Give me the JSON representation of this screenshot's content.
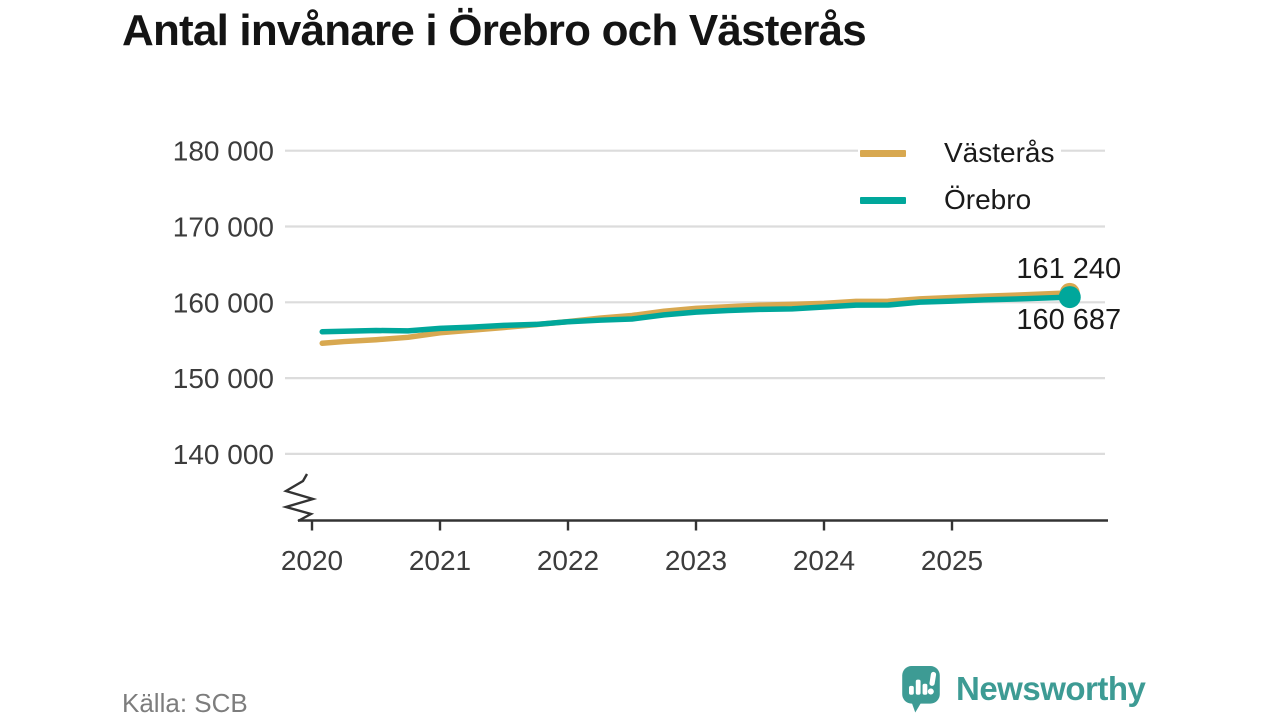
{
  "title": "Antal invånare i Örebro och Västerås",
  "source": "Källa: SCB",
  "branding": {
    "name": "Newsworthy"
  },
  "colors": {
    "vasteras": "#d8a850",
    "orebro": "#00a79b",
    "grid": "#dcdcdc",
    "axis": "#333333",
    "tick_text": "#3c3c3c",
    "value_text": "#1a1a1a",
    "muted_text": "#7d7d7d",
    "brand": "#3d9b94"
  },
  "legend": {
    "position": "top-right",
    "items": [
      {
        "label": "Västerås",
        "series_key": "vasteras"
      },
      {
        "label": "Örebro",
        "series_key": "orebro"
      }
    ]
  },
  "chart_data": {
    "type": "line",
    "title": "Antal invånare i Örebro och Västerås",
    "xlabel": "",
    "ylabel": "",
    "grid": "horizontal",
    "legend_position": "top-right",
    "axis_break": true,
    "ylim_shown": [
      140000,
      180000
    ],
    "x": [
      2020.08,
      2020.25,
      2020.5,
      2020.75,
      2021.0,
      2021.25,
      2021.5,
      2021.75,
      2022.0,
      2022.25,
      2022.5,
      2022.75,
      2023.0,
      2023.25,
      2023.5,
      2023.75,
      2024.0,
      2024.25,
      2024.5,
      2024.75,
      2025.0,
      2025.25,
      2025.5,
      2025.92
    ],
    "series": [
      {
        "name": "Västerås",
        "key": "vasteras",
        "color": "#d8a850",
        "end_label": "161 240",
        "end_value": 161240,
        "values": [
          154600,
          154820,
          155060,
          155380,
          155980,
          156320,
          156680,
          157060,
          157450,
          157920,
          158260,
          158820,
          159200,
          159420,
          159620,
          159720,
          159860,
          160120,
          160140,
          160460,
          160640,
          160800,
          160950,
          161240
        ]
      },
      {
        "name": "Örebro",
        "key": "orebro",
        "color": "#00a79b",
        "end_label": "160 687",
        "end_value": 160687,
        "values": [
          156110,
          156180,
          156280,
          156230,
          156560,
          156720,
          156960,
          157080,
          157430,
          157640,
          157800,
          158340,
          158700,
          158920,
          159060,
          159140,
          159380,
          159620,
          159640,
          160020,
          160160,
          160320,
          160430,
          160687
        ]
      }
    ],
    "yticks": [
      {
        "value": 140000,
        "label": "140 000"
      },
      {
        "value": 150000,
        "label": "150 000"
      },
      {
        "value": 160000,
        "label": "160 000"
      },
      {
        "value": 170000,
        "label": "170 000"
      },
      {
        "value": 180000,
        "label": "180 000"
      }
    ],
    "xticks": [
      {
        "value": 2020,
        "label": "2020"
      },
      {
        "value": 2021,
        "label": "2021"
      },
      {
        "value": 2022,
        "label": "2022"
      },
      {
        "value": 2023,
        "label": "2023"
      },
      {
        "value": 2024,
        "label": "2024"
      },
      {
        "value": 2025,
        "label": "2025"
      }
    ]
  }
}
